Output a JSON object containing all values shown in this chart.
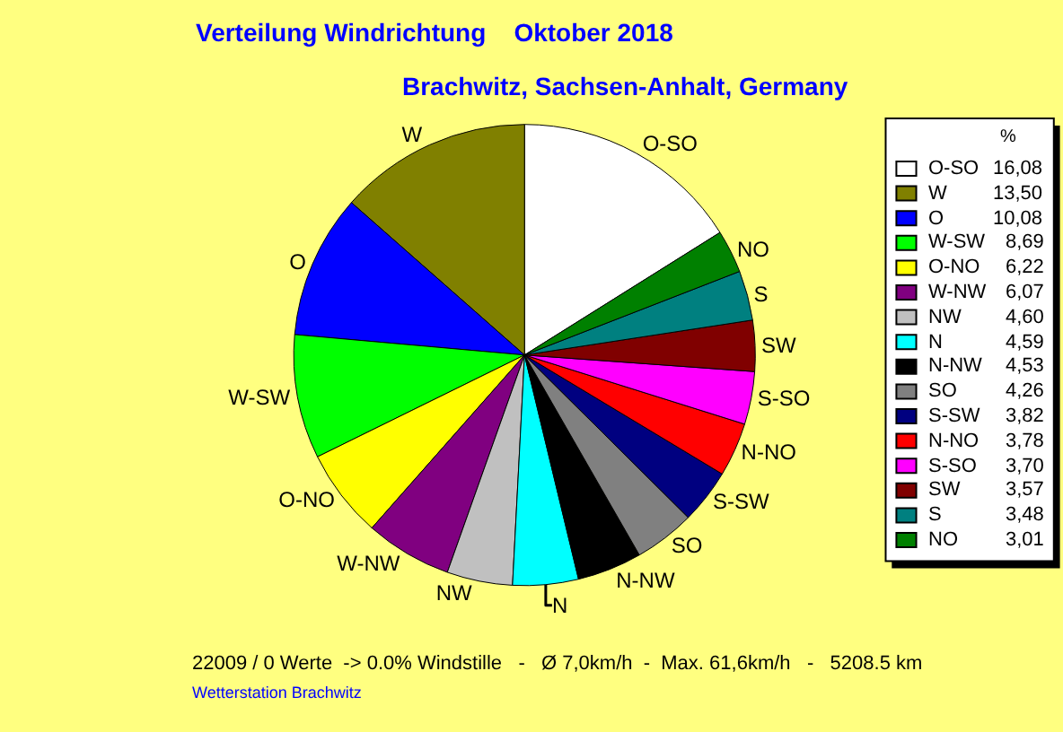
{
  "chart_data": {
    "type": "pie",
    "title": "Verteilung Windrichtung    Oktober 2018",
    "subtitle": "Brachwitz, Sachsen-Anhalt, Germany",
    "legend_title": "%",
    "legend": "right",
    "categories": [
      "O-SO",
      "W",
      "O",
      "W-SW",
      "O-NO",
      "W-NW",
      "NW",
      "N",
      "N-NW",
      "SO",
      "S-SW",
      "N-NO",
      "S-SO",
      "SW",
      "S",
      "NO"
    ],
    "values": [
      16.08,
      13.5,
      10.08,
      8.69,
      6.22,
      6.07,
      4.6,
      4.59,
      4.53,
      4.26,
      3.82,
      3.78,
      3.7,
      3.57,
      3.48,
      3.01
    ],
    "value_labels": [
      "16,08",
      "13,50",
      "10,08",
      "8,69",
      "6,22",
      "6,07",
      "4,60",
      "4,59",
      "4,53",
      "4,26",
      "3,82",
      "3,78",
      "3,70",
      "3,57",
      "3,48",
      "3,01"
    ],
    "colors": [
      "#ffffff",
      "#808000",
      "#0000ff",
      "#00ff00",
      "#ffff00",
      "#800080",
      "#c0c0c0",
      "#00ffff",
      "#000000",
      "#808080",
      "#000080",
      "#ff0000",
      "#ff00ff",
      "#800000",
      "#008080",
      "#008000"
    ],
    "annotations": [
      "22009 / 0 Werte  -> 0.0% Windstille   -   Ø 7,0km/h  -  Max. 61,6km/h   -   5208.5 km",
      "Wetterstation Brachwitz"
    ]
  }
}
